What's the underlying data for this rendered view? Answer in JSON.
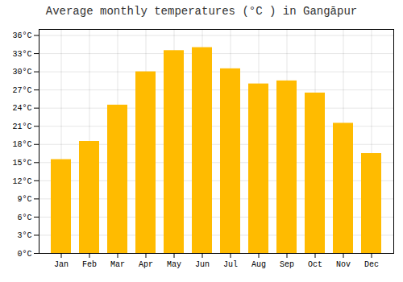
{
  "chart_data": {
    "type": "bar",
    "title": "Average monthly temperatures (°C ) in Gangāpur",
    "categories": [
      "Jan",
      "Feb",
      "Mar",
      "Apr",
      "May",
      "Jun",
      "Jul",
      "Aug",
      "Sep",
      "Oct",
      "Nov",
      "Dec"
    ],
    "values": [
      15.5,
      18.5,
      24.5,
      30.0,
      33.5,
      34.0,
      30.5,
      28.0,
      28.5,
      26.5,
      21.5,
      16.5
    ],
    "color": "#FFBB00",
    "ylim": [
      0,
      37
    ],
    "yticks": [
      {
        "value": 0,
        "label": "0°C"
      },
      {
        "value": 3,
        "label": "3°C"
      },
      {
        "value": 6,
        "label": "6°C"
      },
      {
        "value": 9,
        "label": "9°C"
      },
      {
        "value": 12,
        "label": "12°C"
      },
      {
        "value": 15,
        "label": "15°C"
      },
      {
        "value": 18,
        "label": "18°C"
      },
      {
        "value": 21,
        "label": "21°C"
      },
      {
        "value": 24,
        "label": "24°C"
      },
      {
        "value": 27,
        "label": "27°C"
      },
      {
        "value": 30,
        "label": "30°C"
      },
      {
        "value": 33,
        "label": "33°C"
      },
      {
        "value": 36,
        "label": "36°C"
      }
    ],
    "grid": true
  }
}
